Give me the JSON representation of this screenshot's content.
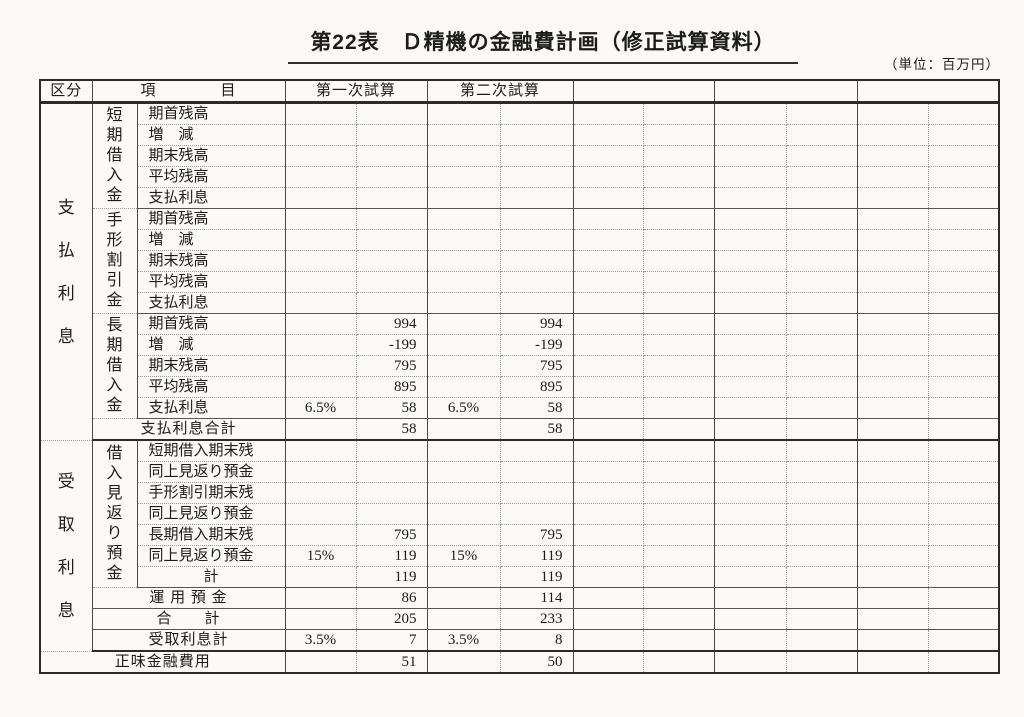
{
  "page": {
    "title": "第22表　Ｄ精機の金融費計画（修正試算資料）",
    "unit_note": "（単位：百万円）"
  },
  "table": {
    "header": {
      "kubun": "区分",
      "item": "項　　　　目",
      "trial_columns": [
        "第一次試算",
        "第二次試算",
        "",
        "",
        ""
      ]
    },
    "sections": [
      {
        "kubun_label": "支払利息",
        "groups": [
          {
            "label": "短期借入金",
            "rows": [
              {
                "label": "期首残高",
                "cells": [
                  "",
                  "",
                  "",
                  ""
                ]
              },
              {
                "label": "増　減",
                "cells": [
                  "",
                  "",
                  "",
                  ""
                ]
              },
              {
                "label": "期末残高",
                "cells": [
                  "",
                  "",
                  "",
                  ""
                ]
              },
              {
                "label": "平均残高",
                "cells": [
                  "",
                  "",
                  "",
                  ""
                ]
              },
              {
                "label": "支払利息",
                "cells": [
                  "",
                  "",
                  "",
                  ""
                ]
              }
            ]
          },
          {
            "label": "手形割引金",
            "rows": [
              {
                "label": "期首残高",
                "cells": [
                  "",
                  "",
                  "",
                  ""
                ]
              },
              {
                "label": "増　減",
                "cells": [
                  "",
                  "",
                  "",
                  ""
                ]
              },
              {
                "label": "期末残高",
                "cells": [
                  "",
                  "",
                  "",
                  ""
                ]
              },
              {
                "label": "平均残高",
                "cells": [
                  "",
                  "",
                  "",
                  ""
                ]
              },
              {
                "label": "支払利息",
                "cells": [
                  "",
                  "",
                  "",
                  ""
                ]
              }
            ]
          },
          {
            "label": "長期借入金",
            "rows": [
              {
                "label": "期首残高",
                "cells": [
                  "",
                  "994",
                  "",
                  "994"
                ]
              },
              {
                "label": "増　減",
                "cells": [
                  "",
                  "-199",
                  "",
                  "-199"
                ]
              },
              {
                "label": "期末残高",
                "cells": [
                  "",
                  "795",
                  "",
                  "795"
                ]
              },
              {
                "label": "平均残高",
                "cells": [
                  "",
                  "895",
                  "",
                  "895"
                ]
              },
              {
                "label": "支払利息",
                "cells": [
                  "6.5%",
                  "58",
                  "6.5%",
                  "58"
                ]
              }
            ]
          }
        ],
        "total_row": {
          "label": "支払利息合計",
          "cells": [
            "",
            "58",
            "",
            "58"
          ]
        }
      },
      {
        "kubun_label": "受取利息",
        "groups": [
          {
            "label": "借入見返り預金",
            "rows": [
              {
                "label": "短期借入期末残",
                "cells": [
                  "",
                  "",
                  "",
                  ""
                ]
              },
              {
                "label": "同上見返り預金",
                "cells": [
                  "",
                  "",
                  "",
                  ""
                ]
              },
              {
                "label": "手形割引期末残",
                "cells": [
                  "",
                  "",
                  "",
                  ""
                ]
              },
              {
                "label": "同上見返り預金",
                "cells": [
                  "",
                  "",
                  "",
                  ""
                ]
              },
              {
                "label": "長期借入期末残",
                "cells": [
                  "",
                  "795",
                  "",
                  "795"
                ]
              },
              {
                "label": "同上見返り預金",
                "cells": [
                  "15%",
                  "119",
                  "15%",
                  "119"
                ]
              },
              {
                "label": "計",
                "align": "center",
                "cells": [
                  "",
                  "119",
                  "",
                  "119"
                ]
              }
            ]
          }
        ],
        "summary_rows": [
          {
            "label": "運 用 預 金",
            "cells": [
              "",
              "86",
              "",
              "114"
            ]
          },
          {
            "label": "合　　計",
            "cells": [
              "",
              "205",
              "",
              "233"
            ]
          },
          {
            "label": "受取利息計",
            "cells": [
              "3.5%",
              "7",
              "3.5%",
              "8"
            ]
          }
        ]
      }
    ],
    "footer_row": {
      "label": "正味金融費用",
      "cells": [
        "",
        "51",
        "",
        "50"
      ]
    }
  }
}
